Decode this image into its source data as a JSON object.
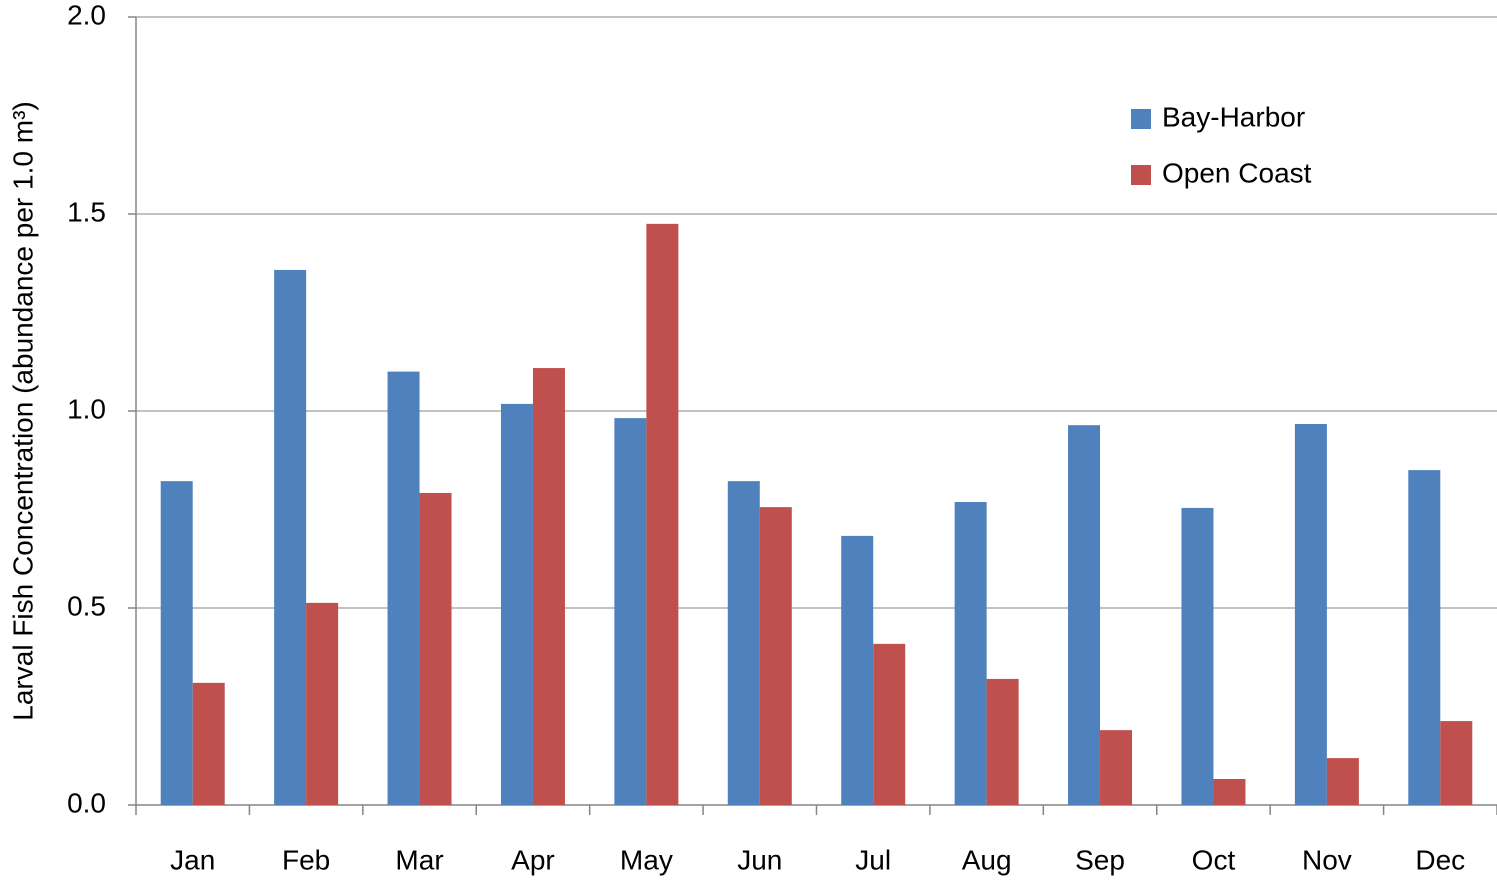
{
  "chart_data": {
    "type": "bar",
    "y_label": "Larval Fish Concentration (abundance per 1.0 m³)",
    "categories": [
      "Jan",
      "Feb",
      "Mar",
      "Apr",
      "May",
      "Jun",
      "Jul",
      "Aug",
      "Sep",
      "Oct",
      "Nov",
      "Dec"
    ],
    "series": [
      {
        "name": "Bay-Harbor",
        "color": "#4f81bd",
        "values": [
          0.822,
          1.358,
          1.1,
          1.018,
          0.982,
          0.822,
          0.683,
          0.769,
          0.964,
          0.754,
          0.967,
          0.85
        ]
      },
      {
        "name": "Open Coast",
        "color": "#c0504d",
        "values": [
          0.31,
          0.513,
          0.792,
          1.109,
          1.475,
          0.756,
          0.409,
          0.32,
          0.19,
          0.066,
          0.119,
          0.213
        ]
      }
    ],
    "ylim": [
      0,
      2
    ],
    "yticks": [
      {
        "value": 0,
        "label": "0.0"
      },
      0.5,
      {
        "value": 1,
        "label": "1.0"
      },
      1.5,
      {
        "value": 2,
        "label": "2.0"
      }
    ],
    "grid": true,
    "legend": "upper right"
  }
}
